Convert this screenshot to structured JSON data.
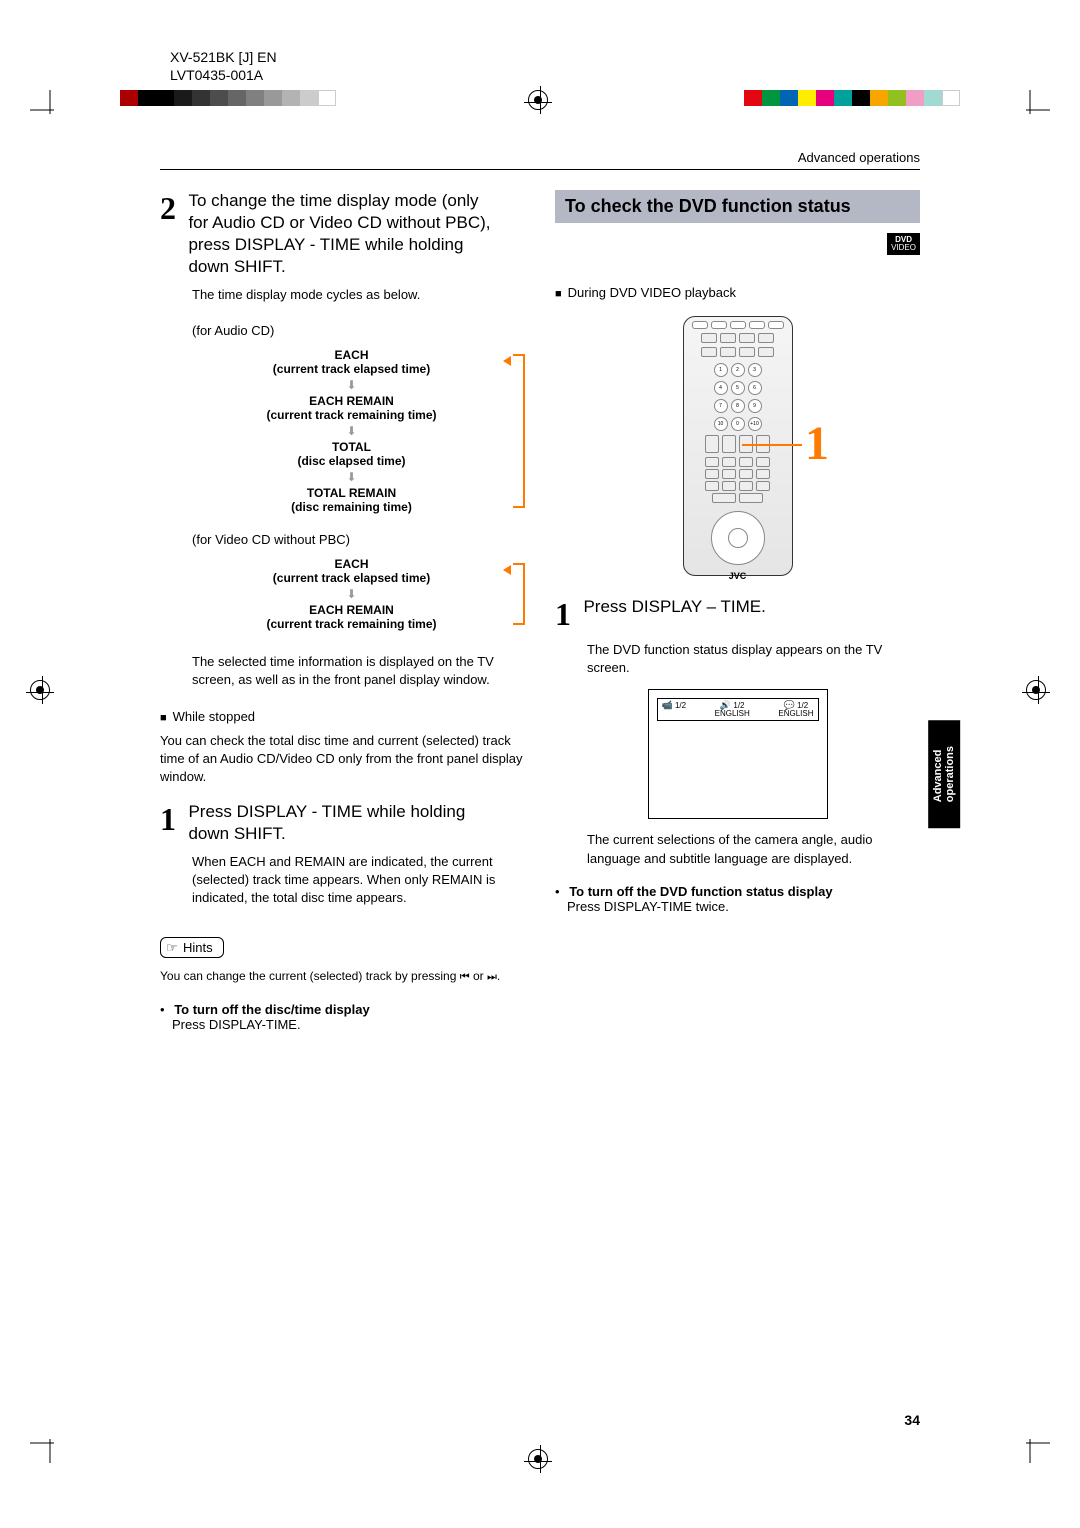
{
  "header": {
    "model": "XV-521BK [J] EN",
    "doc_id": "LVT0435-001A"
  },
  "section_header": "Advanced operations",
  "page_number": "34",
  "side_tab": "Advanced\noperations",
  "left": {
    "step2_num": "2",
    "step2_text": "To change the time display mode (only for Audio CD or Video CD without PBC), press DISPLAY - TIME while holding down SHIFT.",
    "step2_sub": "The time display mode cycles as below.",
    "audio_cd_label": "(for Audio CD)",
    "cycle_audio": [
      {
        "t": "EACH",
        "s": "(current track elapsed time)"
      },
      {
        "t": "EACH REMAIN",
        "s": "(current track remaining time)"
      },
      {
        "t": "TOTAL",
        "s": "(disc elapsed time)"
      },
      {
        "t": "TOTAL REMAIN",
        "s": "(disc remaining time)"
      }
    ],
    "video_cd_label": "(for Video CD without PBC)",
    "cycle_video": [
      {
        "t": "EACH",
        "s": "(current track elapsed time)"
      },
      {
        "t": "EACH REMAIN",
        "s": "(current track remaining time)"
      }
    ],
    "after_cycle": "The selected time information is displayed on the TV screen, as well as in the front panel display window.",
    "while_stopped": "While stopped",
    "stopped_text": "You can check the total disc time and current (selected) track time of an Audio CD/Video CD only from the front panel display window.",
    "step1_num": "1",
    "step1_text": "Press DISPLAY - TIME while holding down SHIFT.",
    "step1_sub": "When EACH and REMAIN are indicated, the current (selected) track time appears. When only REMAIN is indicated, the total disc time appears.",
    "hints_label": "Hints",
    "hints_text_a": "You can change the current (selected) track by pressing ",
    "hints_icon1": "⏮",
    "hints_text_b": " or ",
    "hints_icon2": "⏭",
    "hints_text_c": ".",
    "turnoff_title": "To turn off the disc/time display",
    "turnoff_body": "Press DISPLAY-TIME."
  },
  "right": {
    "title": "To check the DVD function status",
    "dvd_badge_top": "DVD",
    "dvd_badge_bot": "VIDEO",
    "during": "During DVD VIDEO playback",
    "remote_brand": "JVC",
    "remote_callout": "1",
    "step1_num": "1",
    "step1_text": "Press DISPLAY – TIME.",
    "step1_sub": "The DVD function status display appears on the TV screen.",
    "tv_angle": "1/2",
    "tv_audio": "1/2",
    "tv_audio_lang": "ENGLISH",
    "tv_sub": "1/2",
    "tv_sub_lang": "ENGLISH",
    "after_tv": "The current selections of the camera angle, audio language and subtitle language are displayed.",
    "turnoff_title": "To turn off the DVD function status display",
    "turnoff_body": "Press DISPLAY-TIME twice."
  },
  "colors": {
    "accent": "#ff7a00",
    "titlebar_bg": "#b4b8c5"
  },
  "colorbar_left": [
    "#aa0000",
    "#000000",
    "#000000",
    "#1a1a1a",
    "#333333",
    "#4d4d4d",
    "#666666",
    "#808080",
    "#999999",
    "#b3b3b3",
    "#cccccc",
    "#ffffff"
  ],
  "colorbar_right": [
    "#e30613",
    "#009640",
    "#0066b3",
    "#ffed00",
    "#e6007e",
    "#00a19a",
    "#000000",
    "#f7a600",
    "#93c01f",
    "#f29ec4",
    "#a3d9d3",
    "#ffffff"
  ]
}
